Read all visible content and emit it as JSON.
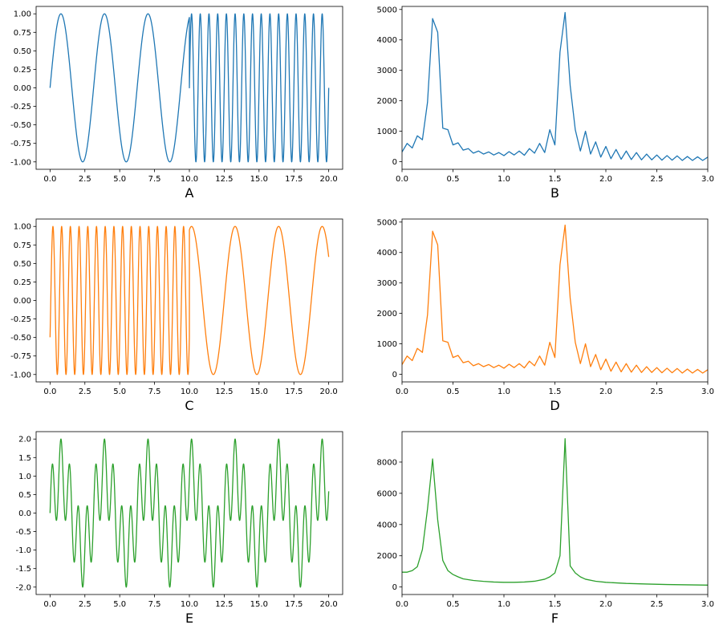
{
  "colors": {
    "blue": "#1f77b4",
    "orange": "#ff7f0e",
    "green": "#2ca02c"
  },
  "chart_data": [
    {
      "type": "line",
      "panel": "A",
      "xlabel": "A",
      "color": "#1f77b4",
      "xlim": [
        -1,
        21
      ],
      "ylim": [
        -1.1,
        1.1
      ],
      "xticks": [
        "0.0",
        "2.5",
        "5.0",
        "7.5",
        "10.0",
        "12.5",
        "15.0",
        "17.5",
        "20.0"
      ],
      "yticks": [
        "-1.00",
        "-0.75",
        "-0.50",
        "-0.25",
        "0.00",
        "0.25",
        "0.50",
        "0.75",
        "1.00"
      ],
      "signal": {
        "kind": "piecewise_sine",
        "segments": [
          {
            "from": 0,
            "to": 10,
            "freq": 0.32,
            "phase": 0
          },
          {
            "from": 10,
            "to": 20,
            "freq": 1.6,
            "phase": 0
          }
        ]
      }
    },
    {
      "type": "line",
      "panel": "B",
      "xlabel": "B",
      "color": "#1f77b4",
      "xlim": [
        0,
        3
      ],
      "ylim": [
        -250,
        5100
      ],
      "xticks": [
        "0.0",
        "0.5",
        "1.0",
        "1.5",
        "2.0",
        "2.5",
        "3.0"
      ],
      "yticks": [
        "0",
        "1000",
        "2000",
        "3000",
        "4000",
        "5000"
      ],
      "x": [
        0,
        0.05,
        0.1,
        0.15,
        0.2,
        0.25,
        0.3,
        0.35,
        0.4,
        0.45,
        0.5,
        0.55,
        0.6,
        0.65,
        0.7,
        0.75,
        0.8,
        0.85,
        0.9,
        0.95,
        1.0,
        1.05,
        1.1,
        1.15,
        1.2,
        1.25,
        1.3,
        1.35,
        1.4,
        1.45,
        1.5,
        1.55,
        1.6,
        1.65,
        1.7,
        1.75,
        1.8,
        1.85,
        1.9,
        1.95,
        2.0,
        2.05,
        2.1,
        2.15,
        2.2,
        2.25,
        2.3,
        2.35,
        2.4,
        2.45,
        2.5,
        2.55,
        2.6,
        2.65,
        2.7,
        2.75,
        2.8,
        2.85,
        2.9,
        2.95,
        3.0
      ],
      "y": [
        320,
        600,
        450,
        850,
        720,
        1950,
        4700,
        4250,
        1100,
        1050,
        550,
        620,
        380,
        430,
        280,
        350,
        250,
        320,
        220,
        300,
        200,
        330,
        220,
        350,
        210,
        430,
        280,
        600,
        300,
        1050,
        550,
        3600,
        4900,
        2500,
        1050,
        350,
        1000,
        250,
        650,
        150,
        500,
        100,
        400,
        80,
        350,
        70,
        300,
        60,
        250,
        60,
        220,
        50,
        200,
        50,
        190,
        40,
        170,
        40,
        160,
        40,
        150
      ]
    },
    {
      "type": "line",
      "panel": "C",
      "xlabel": "C",
      "color": "#ff7f0e",
      "xlim": [
        -1,
        21
      ],
      "ylim": [
        -1.1,
        1.1
      ],
      "xticks": [
        "0.0",
        "2.5",
        "5.0",
        "7.5",
        "10.0",
        "12.5",
        "15.0",
        "17.5",
        "20.0"
      ],
      "yticks": [
        "-1.00",
        "-0.75",
        "-0.50",
        "-0.25",
        "0.00",
        "0.25",
        "0.50",
        "0.75",
        "1.00"
      ],
      "signal": {
        "kind": "piecewise_sine",
        "segments": [
          {
            "from": 0,
            "to": 10,
            "freq": 1.6,
            "phase": -0.52
          },
          {
            "from": 10,
            "to": 20,
            "freq": 0.32,
            "phase": 0
          }
        ]
      }
    },
    {
      "type": "line",
      "panel": "D",
      "xlabel": "D",
      "color": "#ff7f0e",
      "xlim": [
        0,
        3
      ],
      "ylim": [
        -250,
        5100
      ],
      "xticks": [
        "0.0",
        "0.5",
        "1.0",
        "1.5",
        "2.0",
        "2.5",
        "3.0"
      ],
      "yticks": [
        "0",
        "1000",
        "2000",
        "3000",
        "4000",
        "5000"
      ],
      "x": [
        0,
        0.05,
        0.1,
        0.15,
        0.2,
        0.25,
        0.3,
        0.35,
        0.4,
        0.45,
        0.5,
        0.55,
        0.6,
        0.65,
        0.7,
        0.75,
        0.8,
        0.85,
        0.9,
        0.95,
        1.0,
        1.05,
        1.1,
        1.15,
        1.2,
        1.25,
        1.3,
        1.35,
        1.4,
        1.45,
        1.5,
        1.55,
        1.6,
        1.65,
        1.7,
        1.75,
        1.8,
        1.85,
        1.9,
        1.95,
        2.0,
        2.05,
        2.1,
        2.15,
        2.2,
        2.25,
        2.3,
        2.35,
        2.4,
        2.45,
        2.5,
        2.55,
        2.6,
        2.65,
        2.7,
        2.75,
        2.8,
        2.85,
        2.9,
        2.95,
        3.0
      ],
      "y": [
        320,
        600,
        450,
        850,
        720,
        1950,
        4700,
        4250,
        1100,
        1050,
        550,
        620,
        380,
        430,
        280,
        350,
        250,
        320,
        220,
        300,
        200,
        330,
        220,
        350,
        210,
        430,
        280,
        600,
        300,
        1050,
        550,
        3600,
        4900,
        2500,
        1050,
        350,
        1000,
        250,
        650,
        150,
        500,
        100,
        400,
        80,
        350,
        70,
        300,
        60,
        250,
        60,
        220,
        50,
        200,
        50,
        190,
        40,
        170,
        40,
        160,
        40,
        150
      ]
    },
    {
      "type": "line",
      "panel": "E",
      "xlabel": "E",
      "color": "#2ca02c",
      "xlim": [
        -1,
        21
      ],
      "ylim": [
        -2.2,
        2.2
      ],
      "xticks": [
        "0.0",
        "2.5",
        "5.0",
        "7.5",
        "10.0",
        "12.5",
        "15.0",
        "17.5",
        "20.0"
      ],
      "yticks": [
        "-2.0",
        "-1.5",
        "-1.0",
        "-0.5",
        "0.0",
        "0.5",
        "1.0",
        "1.5",
        "2.0"
      ],
      "signal": {
        "kind": "sum_sine",
        "freqs": [
          0.32,
          1.6
        ],
        "from": 0,
        "to": 20
      }
    },
    {
      "type": "line",
      "panel": "F",
      "xlabel": "F",
      "color": "#2ca02c",
      "xlim": [
        0,
        3
      ],
      "ylim": [
        -480,
        9950
      ],
      "xticks": [
        "0.0",
        "0.5",
        "1.0",
        "1.5",
        "2.0",
        "2.5",
        "3.0"
      ],
      "yticks": [
        "0",
        "2000",
        "4000",
        "6000",
        "8000"
      ],
      "x": [
        0,
        0.05,
        0.1,
        0.15,
        0.2,
        0.25,
        0.3,
        0.35,
        0.4,
        0.45,
        0.5,
        0.55,
        0.6,
        0.7,
        0.8,
        0.9,
        1.0,
        1.1,
        1.2,
        1.3,
        1.4,
        1.45,
        1.5,
        1.55,
        1.6,
        1.65,
        1.7,
        1.75,
        1.8,
        1.9,
        2.0,
        2.2,
        2.4,
        2.6,
        2.8,
        3.0
      ],
      "y": [
        950,
        950,
        1050,
        1300,
        2400,
        5000,
        8200,
        4300,
        1700,
        1050,
        800,
        650,
        520,
        420,
        360,
        320,
        300,
        300,
        320,
        370,
        500,
        650,
        900,
        2000,
        9500,
        1350,
        900,
        650,
        500,
        370,
        300,
        230,
        190,
        160,
        140,
        120
      ]
    }
  ]
}
